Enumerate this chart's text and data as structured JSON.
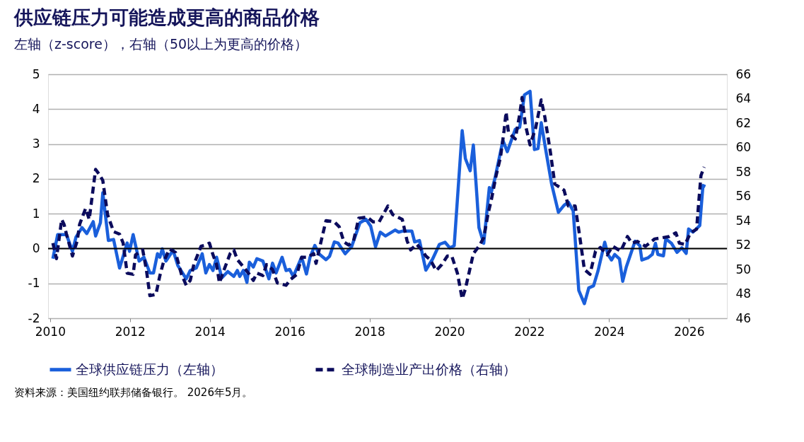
{
  "chart_data": {
    "type": "line",
    "title": "供应链压力可能造成更高的商品价格",
    "subtitle": "左轴（z-score），右轴（50以上为更高的价格）",
    "annotations": [
      "资料来源：美国纽约联邦储备银行。     2026年5月。"
    ],
    "xlim": [
      2009.95,
      2026.95
    ],
    "xticks": [
      2010,
      2012,
      2014,
      2016,
      2018,
      2020,
      2022,
      2024,
      2026
    ],
    "ylim": [
      -2,
      5
    ],
    "yticks": [
      -2,
      -1,
      0,
      1,
      2,
      3,
      4,
      5
    ],
    "y2lim": [
      46,
      66
    ],
    "y2ticks": [
      46,
      48,
      50,
      52,
      54,
      56,
      58,
      60,
      62,
      64,
      66
    ],
    "grid": "y",
    "legend": "bottom",
    "ref_lines": [
      {
        "axis": "y",
        "value": 0,
        "color": "#000000"
      }
    ],
    "series": [
      {
        "name": "全球供应链压力（左轴）",
        "color": "#1a5fdb",
        "line_style": "solid",
        "x": [
          2010.07,
          2010.19,
          2010.41,
          2010.56,
          2010.65,
          2010.8,
          2010.92,
          2011.08,
          2011.14,
          2011.26,
          2011.32,
          2011.46,
          2011.59,
          2011.74,
          2011.93,
          2011.99,
          2012.08,
          2012.23,
          2012.35,
          2012.5,
          2012.59,
          2012.69,
          2012.75,
          2012.81,
          2012.9,
          2013.08,
          2013.2,
          2013.41,
          2013.51,
          2013.66,
          2013.81,
          2013.9,
          2013.99,
          2014.08,
          2014.17,
          2014.3,
          2014.45,
          2014.6,
          2014.69,
          2014.75,
          2014.84,
          2014.93,
          2014.99,
          2015.09,
          2015.18,
          2015.33,
          2015.48,
          2015.57,
          2015.66,
          2015.81,
          2015.91,
          2016.0,
          2016.09,
          2016.3,
          2016.42,
          2016.51,
          2016.63,
          2016.73,
          2016.91,
          2017.0,
          2017.12,
          2017.21,
          2017.39,
          2017.55,
          2017.76,
          2017.91,
          2018.03,
          2018.15,
          2018.27,
          2018.4,
          2018.64,
          2018.73,
          2018.82,
          2019.06,
          2019.13,
          2019.25,
          2019.41,
          2019.58,
          2019.75,
          2019.89,
          2020.01,
          2020.12,
          2020.32,
          2020.4,
          2020.52,
          2020.6,
          2020.69,
          2020.74,
          2020.86,
          2021.0,
          2021.05,
          2021.14,
          2021.34,
          2021.45,
          2021.65,
          2021.76,
          2021.88,
          2022.02,
          2022.13,
          2022.22,
          2022.3,
          2022.42,
          2022.56,
          2022.73,
          2022.87,
          2022.98,
          2023.1,
          2023.24,
          2023.38,
          2023.49,
          2023.61,
          2023.72,
          2023.89,
          2023.97,
          2024.06,
          2024.14,
          2024.26,
          2024.34,
          2024.43,
          2024.65,
          2024.77,
          2024.82,
          2024.97,
          2025.08,
          2025.16,
          2025.22,
          2025.36,
          2025.42,
          2025.56,
          2025.7,
          2025.82,
          2025.93,
          2025.99,
          2026.1,
          2026.27,
          2026.35,
          2026.41
        ],
        "values": [
          -0.29,
          0.4,
          0.4,
          -0.08,
          0.33,
          0.6,
          0.43,
          0.77,
          0.36,
          0.74,
          1.6,
          0.23,
          0.26,
          -0.56,
          0.16,
          -0.08,
          0.4,
          -0.36,
          -0.25,
          -0.7,
          -0.7,
          -0.15,
          -0.25,
          -0.01,
          -0.36,
          -0.05,
          -0.49,
          -0.87,
          -0.63,
          -0.56,
          -0.15,
          -0.7,
          -0.46,
          -0.63,
          -0.25,
          -0.84,
          -0.66,
          -0.8,
          -0.63,
          -0.8,
          -0.63,
          -0.97,
          -0.39,
          -0.53,
          -0.29,
          -0.36,
          -0.87,
          -0.42,
          -0.7,
          -0.25,
          -0.63,
          -0.6,
          -0.8,
          -0.25,
          -0.73,
          -0.25,
          0.09,
          -0.15,
          -0.32,
          -0.22,
          0.19,
          0.16,
          -0.15,
          0.05,
          0.74,
          0.84,
          0.64,
          0.05,
          0.47,
          0.36,
          0.53,
          0.47,
          0.5,
          0.5,
          0.19,
          0.23,
          -0.62,
          -0.3,
          0.12,
          0.18,
          0.02,
          0.08,
          3.38,
          2.58,
          2.23,
          2.97,
          1.49,
          0.6,
          0.15,
          1.75,
          1.62,
          2.01,
          3.1,
          2.78,
          3.42,
          3.48,
          4.41,
          4.51,
          2.84,
          2.87,
          3.61,
          2.78,
          1.85,
          1.04,
          1.24,
          1.33,
          1.08,
          -1.2,
          -1.58,
          -1.13,
          -1.07,
          -0.65,
          0.18,
          -0.17,
          -0.33,
          -0.17,
          -0.3,
          -0.94,
          -0.53,
          0.21,
          0.08,
          -0.33,
          -0.27,
          -0.17,
          0.15,
          -0.17,
          -0.21,
          0.28,
          0.15,
          -0.11,
          0.02,
          -0.14,
          0.56,
          0.47,
          0.66,
          1.81,
          1.78
        ]
      },
      {
        "name": "全球制造业产出价格（右轴）",
        "color": "#0b0b5c",
        "line_style": "dashed",
        "axis": "y2",
        "x": [
          2010.07,
          2010.16,
          2010.29,
          2010.35,
          2010.41,
          2010.56,
          2010.68,
          2010.74,
          2010.89,
          2010.98,
          2011.14,
          2011.23,
          2011.32,
          2011.44,
          2011.59,
          2011.74,
          2011.83,
          2011.93,
          2012.08,
          2012.14,
          2012.32,
          2012.41,
          2012.5,
          2012.65,
          2012.75,
          2012.84,
          2012.99,
          2013.14,
          2013.29,
          2013.41,
          2013.51,
          2013.6,
          2013.78,
          2013.9,
          2013.99,
          2014.08,
          2014.17,
          2014.24,
          2014.36,
          2014.51,
          2014.6,
          2014.69,
          2014.87,
          2014.99,
          2015.09,
          2015.18,
          2015.33,
          2015.42,
          2015.57,
          2015.69,
          2015.91,
          2016.03,
          2016.18,
          2016.3,
          2016.45,
          2016.6,
          2016.66,
          2016.79,
          2016.91,
          2017.12,
          2017.24,
          2017.36,
          2017.48,
          2017.6,
          2017.73,
          2017.94,
          2018.09,
          2018.24,
          2018.46,
          2018.58,
          2018.82,
          2018.94,
          2019.03,
          2019.18,
          2019.31,
          2019.41,
          2019.52,
          2019.67,
          2019.81,
          2019.95,
          2020.06,
          2020.2,
          2020.32,
          2020.4,
          2020.49,
          2020.6,
          2020.74,
          2020.86,
          2020.97,
          2021.05,
          2021.17,
          2021.28,
          2021.37,
          2021.42,
          2021.48,
          2021.65,
          2021.76,
          2021.82,
          2021.9,
          2022.02,
          2022.16,
          2022.3,
          2022.39,
          2022.53,
          2022.64,
          2022.87,
          2022.98,
          2023.15,
          2023.26,
          2023.38,
          2023.52,
          2023.66,
          2023.78,
          2023.95,
          2024.09,
          2024.29,
          2024.46,
          2024.57,
          2024.71,
          2024.91,
          2025.14,
          2025.34,
          2025.5,
          2025.67,
          2025.76,
          2025.9,
          2026.04,
          2026.19,
          2026.24,
          2026.3,
          2026.38
        ],
        "values": [
          52.16,
          50.88,
          54.1,
          53.7,
          52.9,
          51.1,
          52.35,
          53.7,
          55.0,
          54.1,
          58.2,
          57.8,
          57.3,
          54.5,
          53.1,
          52.9,
          52.16,
          49.7,
          49.6,
          51.2,
          51.6,
          50.0,
          47.85,
          47.95,
          49.5,
          50.6,
          51.67,
          51.4,
          49.6,
          48.7,
          49.1,
          50.4,
          51.9,
          52.0,
          52.16,
          51.2,
          50.4,
          48.9,
          50.0,
          51.3,
          51.6,
          50.8,
          50.1,
          49.6,
          49.1,
          49.7,
          49.5,
          50.4,
          50.0,
          48.9,
          48.7,
          49.2,
          49.6,
          51.0,
          51.0,
          51.3,
          50.5,
          52.35,
          54.0,
          53.9,
          53.5,
          52.25,
          52.0,
          52.35,
          54.2,
          54.3,
          53.9,
          53.9,
          55.2,
          54.5,
          54.1,
          52.35,
          51.6,
          52.06,
          51.6,
          51.1,
          50.8,
          49.9,
          50.4,
          51.1,
          51.1,
          49.7,
          47.6,
          48.4,
          49.7,
          51.3,
          51.9,
          52.6,
          54.6,
          55.7,
          57.7,
          59.2,
          61.4,
          62.9,
          61.2,
          60.7,
          62.7,
          64.1,
          61.9,
          60.2,
          61.6,
          63.9,
          62.5,
          59.6,
          57.0,
          56.5,
          55.2,
          55.2,
          52.8,
          50.0,
          49.6,
          51.5,
          51.8,
          51.2,
          51.9,
          51.5,
          52.7,
          52.15,
          52.3,
          51.9,
          52.5,
          52.6,
          52.7,
          53.0,
          52.15,
          52.05,
          53.0,
          53.3,
          55.35,
          57.7,
          58.4
        ]
      }
    ]
  }
}
